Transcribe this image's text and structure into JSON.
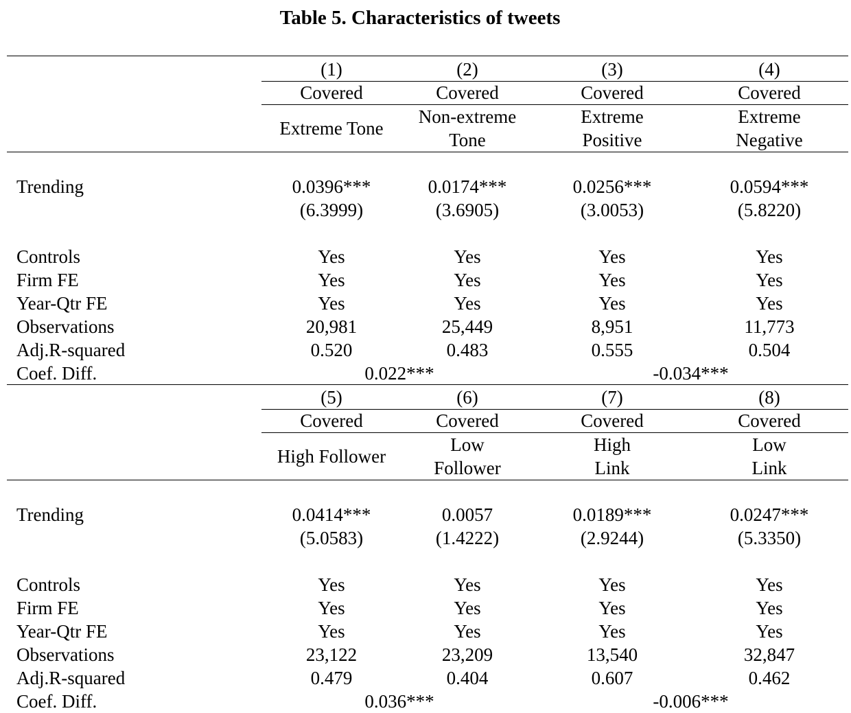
{
  "title": "Table 5. Characteristics of tweets",
  "panels": [
    {
      "col_numbers": [
        "(1)",
        "(2)",
        "(3)",
        "(4)"
      ],
      "covered": [
        "Covered",
        "Covered",
        "Covered",
        "Covered"
      ],
      "groups": [
        [
          "Extreme Tone"
        ],
        [
          "Non-extreme",
          "Tone"
        ],
        [
          "Extreme",
          "Positive"
        ],
        [
          "Extreme",
          "Negative"
        ]
      ],
      "trending_label": "Trending",
      "coef": [
        "0.0396***",
        "0.0174***",
        "0.0256***",
        "0.0594***"
      ],
      "tstat": [
        "(6.3999)",
        "(3.6905)",
        "(3.0053)",
        "(5.8220)"
      ],
      "rows": [
        {
          "label": "Controls",
          "values": [
            "Yes",
            "Yes",
            "Yes",
            "Yes"
          ]
        },
        {
          "label": "Firm FE",
          "values": [
            "Yes",
            "Yes",
            "Yes",
            "Yes"
          ]
        },
        {
          "label": "Year-Qtr FE",
          "values": [
            "Yes",
            "Yes",
            "Yes",
            "Yes"
          ]
        },
        {
          "label": "Observations",
          "values": [
            "20,981",
            "25,449",
            "8,951",
            "11,773"
          ]
        },
        {
          "label": "Adj.R-squared",
          "values": [
            "0.520",
            "0.483",
            "0.555",
            "0.504"
          ]
        }
      ],
      "diff_label": "Coef. Diff.",
      "diff": [
        "0.022***",
        "-0.034***"
      ]
    },
    {
      "col_numbers": [
        "(5)",
        "(6)",
        "(7)",
        "(8)"
      ],
      "covered": [
        "Covered",
        "Covered",
        "Covered",
        "Covered"
      ],
      "groups": [
        [
          "High Follower"
        ],
        [
          "Low",
          "Follower"
        ],
        [
          "High",
          "Link"
        ],
        [
          "Low",
          "Link"
        ]
      ],
      "trending_label": "Trending",
      "coef": [
        "0.0414***",
        "0.0057",
        "0.0189***",
        "0.0247***"
      ],
      "tstat": [
        "(5.0583)",
        "(1.4222)",
        "(2.9244)",
        "(5.3350)"
      ],
      "rows": [
        {
          "label": "Controls",
          "values": [
            "Yes",
            "Yes",
            "Yes",
            "Yes"
          ]
        },
        {
          "label": "Firm FE",
          "values": [
            "Yes",
            "Yes",
            "Yes",
            "Yes"
          ]
        },
        {
          "label": "Year-Qtr FE",
          "values": [
            "Yes",
            "Yes",
            "Yes",
            "Yes"
          ]
        },
        {
          "label": "Observations",
          "values": [
            "23,122",
            "23,209",
            "13,540",
            "32,847"
          ]
        },
        {
          "label": "Adj.R-squared",
          "values": [
            "0.479",
            "0.404",
            "0.607",
            "0.462"
          ]
        }
      ],
      "diff_label": "Coef. Diff.",
      "diff": [
        "0.036***",
        "-0.006***"
      ]
    }
  ]
}
